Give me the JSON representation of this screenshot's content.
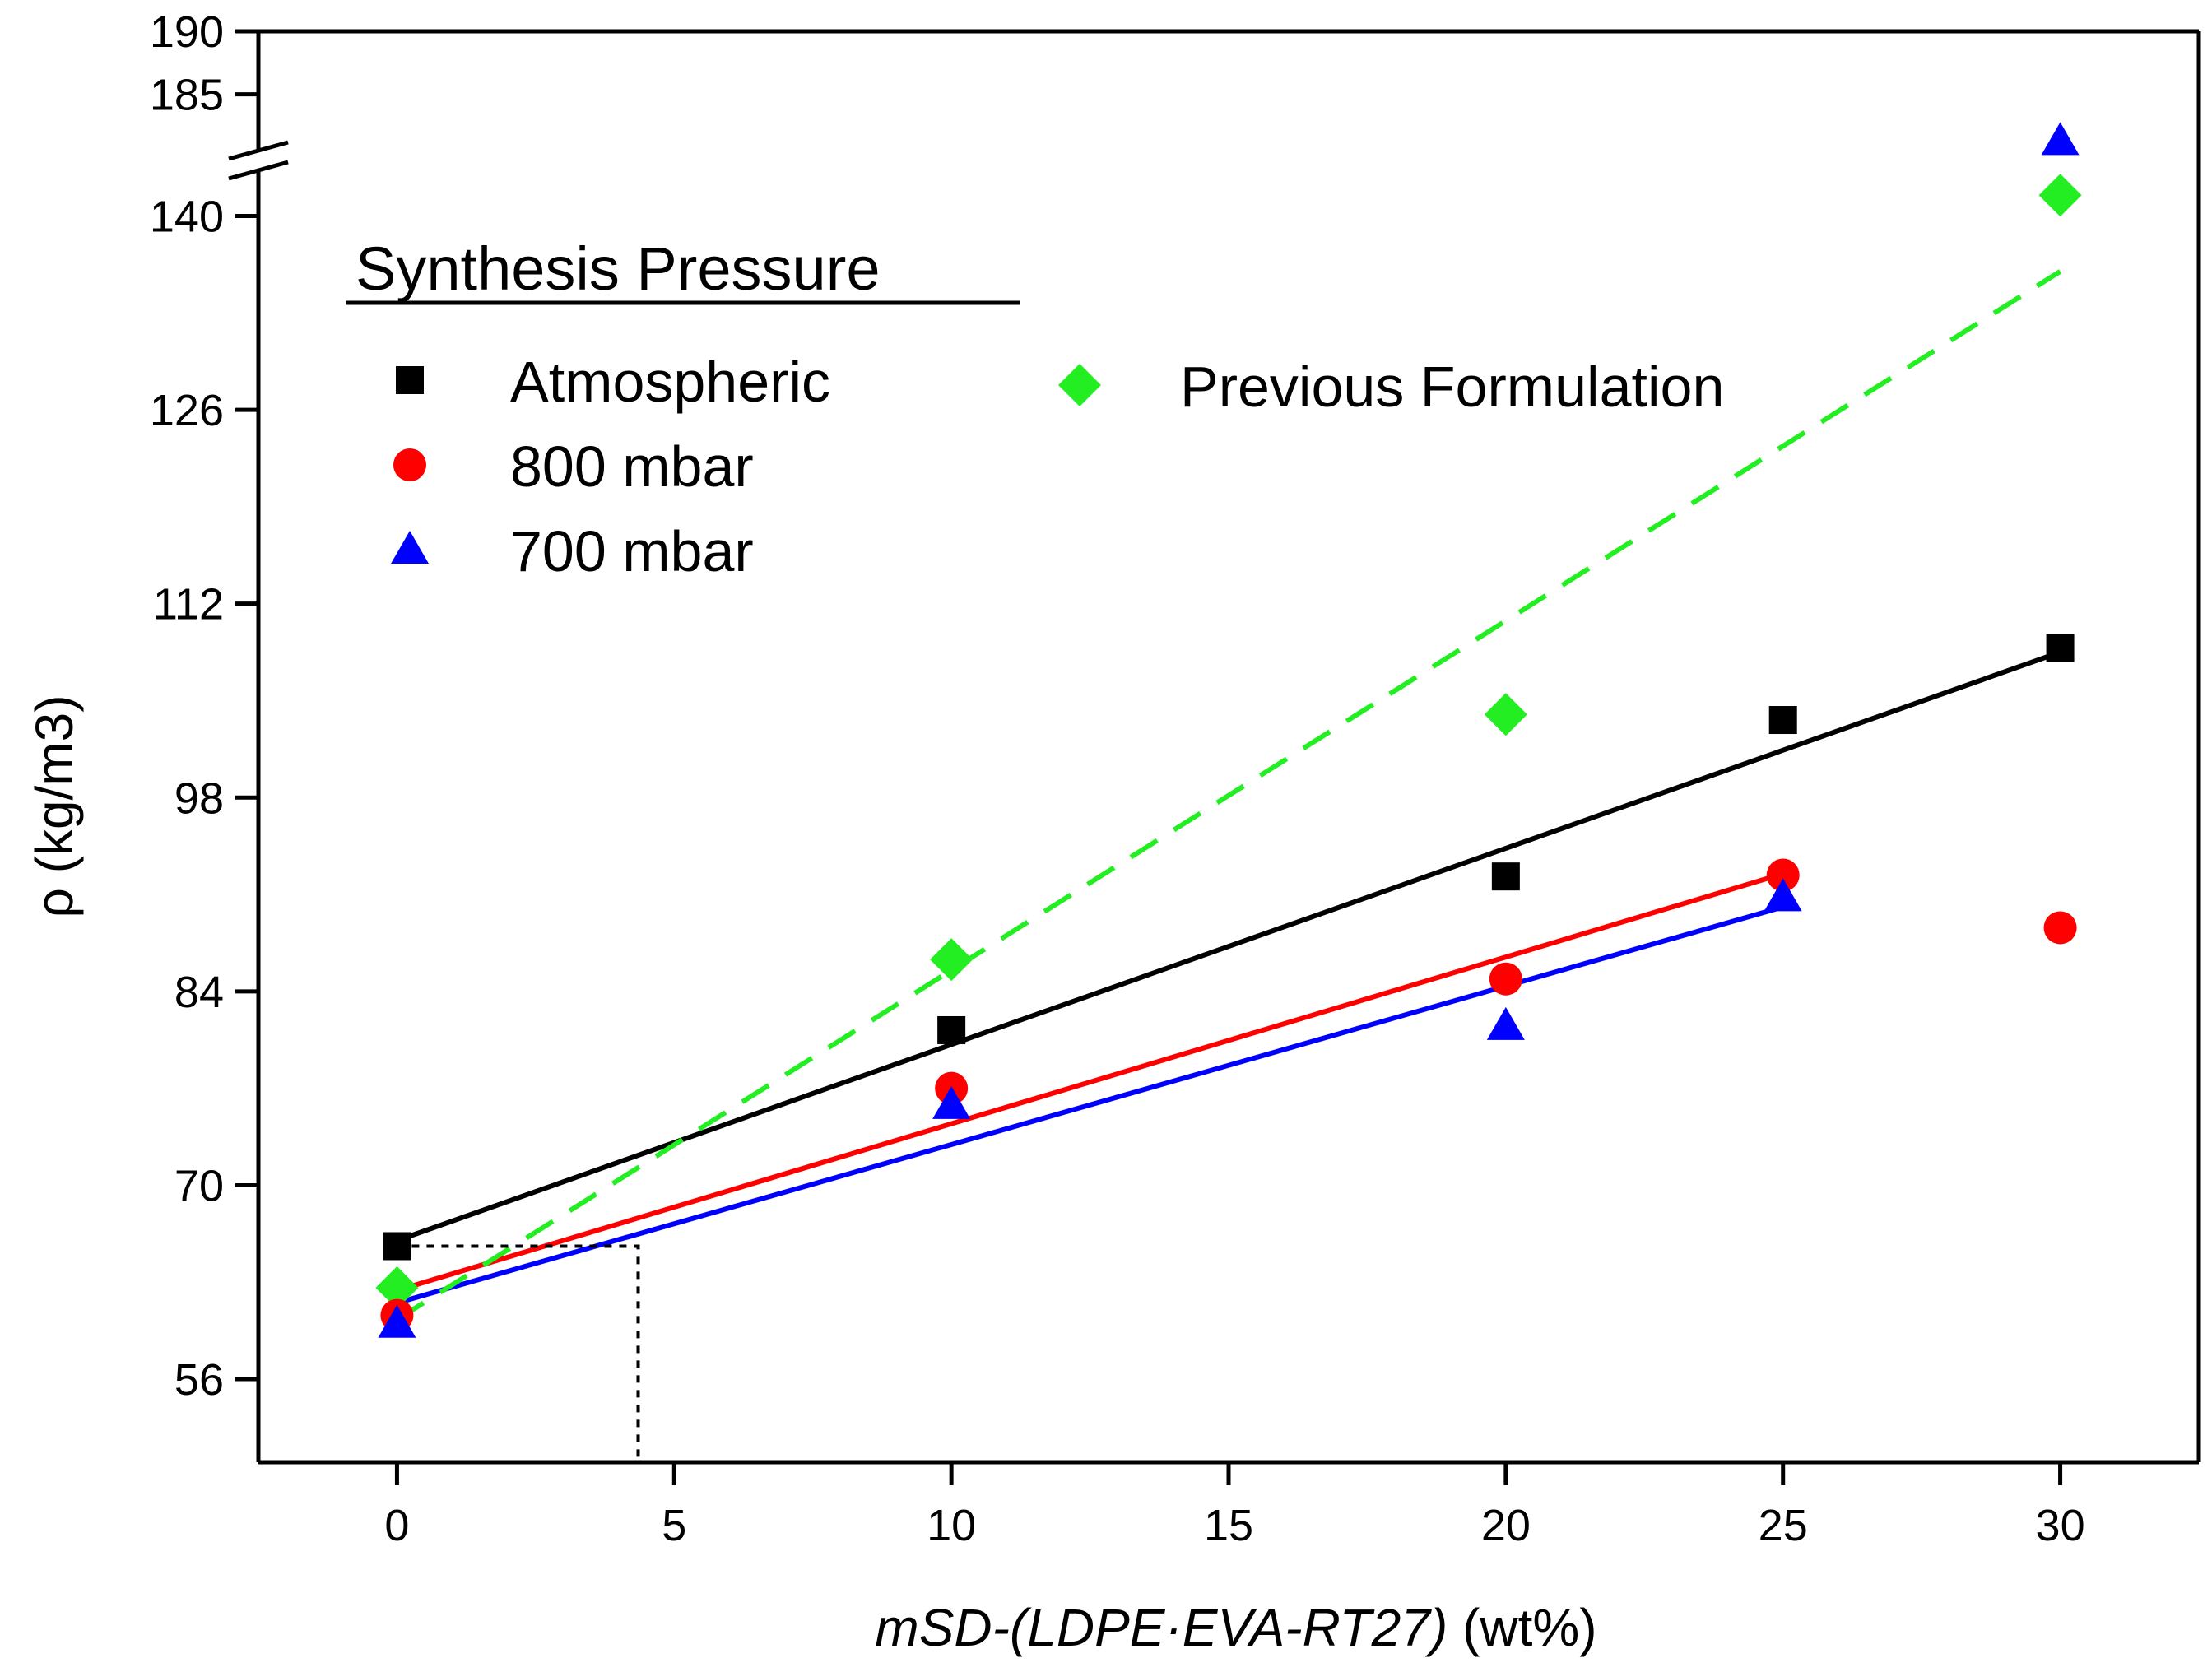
{
  "chart_data": {
    "type": "scatter",
    "title": "",
    "xlabel_italic": "mSD-(LDPE·EVA-RT27)",
    "xlabel_unit": "(wt%)",
    "ylabel": "ρ (kg/m3)",
    "xlim": [
      -2.5,
      32.5
    ],
    "x_ticks": [
      0,
      5,
      10,
      15,
      20,
      25,
      30
    ],
    "x_tick_labels": [
      "0",
      "5",
      "10",
      "15",
      "20",
      "25",
      "30"
    ],
    "y_lower": {
      "range": [
        50,
        143
      ],
      "ticks": [
        56,
        70,
        84,
        98,
        112,
        126,
        140
      ]
    },
    "y_upper": {
      "range": [
        181,
        190
      ],
      "ticks": [
        185,
        190
      ]
    },
    "axis_break": true,
    "legend_title": "Synthesis Pressure",
    "legend_position": "top-left",
    "series": [
      {
        "name": "Atmospheric",
        "marker": "square",
        "color": "#000000",
        "x": [
          0,
          10,
          20,
          25,
          30
        ],
        "y": [
          65.6,
          81.2,
          92.3,
          103.6,
          108.8
        ],
        "fit": {
          "x": [
            0,
            30
          ],
          "y": [
            66.0,
            108.5
          ],
          "style": "solid"
        }
      },
      {
        "name": "800 mbar",
        "marker": "circle",
        "color": "#ff0000",
        "x": [
          0,
          10,
          20,
          25,
          30
        ],
        "y": [
          60.6,
          77.0,
          84.9,
          92.4,
          88.6
        ],
        "fit": {
          "x": [
            0,
            25
          ],
          "y": [
            62.4,
            92.5
          ],
          "style": "solid"
        }
      },
      {
        "name": "700 mbar",
        "marker": "triangle",
        "color": "#0000ff",
        "x": [
          0,
          10,
          20,
          25,
          30
        ],
        "y": [
          60.0,
          75.8,
          81.5,
          90.8,
          181.3
        ],
        "fit": {
          "x": [
            0,
            25
          ],
          "y": [
            61.5,
            90.1
          ],
          "style": "solid"
        }
      },
      {
        "name": "Previous Formulation",
        "marker": "diamond",
        "color": "#22ee22",
        "x": [
          0,
          10,
          20,
          30
        ],
        "y": [
          62.6,
          86.3,
          104.0,
          141.5
        ],
        "fit": {
          "x": [
            0,
            30
          ],
          "y": [
            60.3,
            136.0
          ],
          "style": "dashed"
        }
      }
    ],
    "annotations": [
      {
        "type": "dotted-guide",
        "x": [
          0,
          4.35,
          4.35
        ],
        "y": [
          65.6,
          65.6,
          50
        ]
      }
    ]
  }
}
